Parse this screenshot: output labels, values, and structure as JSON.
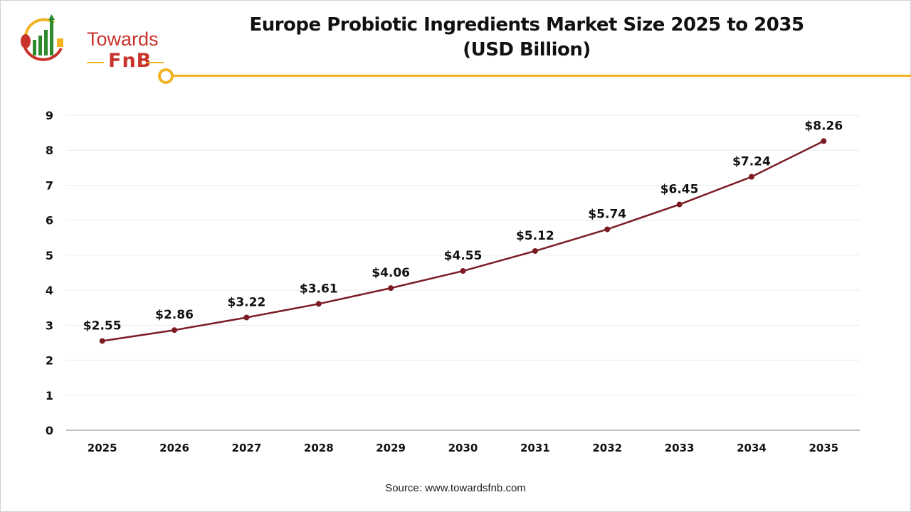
{
  "logo": {
    "line1": "Towards",
    "line2": "FnB"
  },
  "title_line1": "Europe Probiotic Ingredients Market Size 2025 to 2035",
  "title_line2": "(USD Billion)",
  "source": "Source: www.towardsfnb.com",
  "colors": {
    "line": "#7b1c24",
    "accent": "#f0b323",
    "grid": "#ececec",
    "axis": "#bfbfbf"
  },
  "chart_data": {
    "type": "line",
    "title": "Europe Probiotic Ingredients Market Size 2025 to 2035 (USD Billion)",
    "xlabel": "",
    "ylabel": "",
    "categories": [
      "2025",
      "2026",
      "2027",
      "2028",
      "2029",
      "2030",
      "2031",
      "2032",
      "2033",
      "2034",
      "2035"
    ],
    "values": [
      2.55,
      2.86,
      3.22,
      3.61,
      4.06,
      4.55,
      5.12,
      5.74,
      6.45,
      7.24,
      8.26
    ],
    "data_labels": [
      "$2.55",
      "$2.86",
      "$3.22",
      "$3.61",
      "$4.06",
      "$4.55",
      "$5.12",
      "$5.74",
      "$6.45",
      "$7.24",
      "$8.26"
    ],
    "ylim": [
      0,
      9
    ],
    "yticks": [
      "0",
      "1",
      "2",
      "3",
      "4",
      "5",
      "6",
      "7",
      "8",
      "9"
    ],
    "grid": true,
    "legend": "none"
  }
}
